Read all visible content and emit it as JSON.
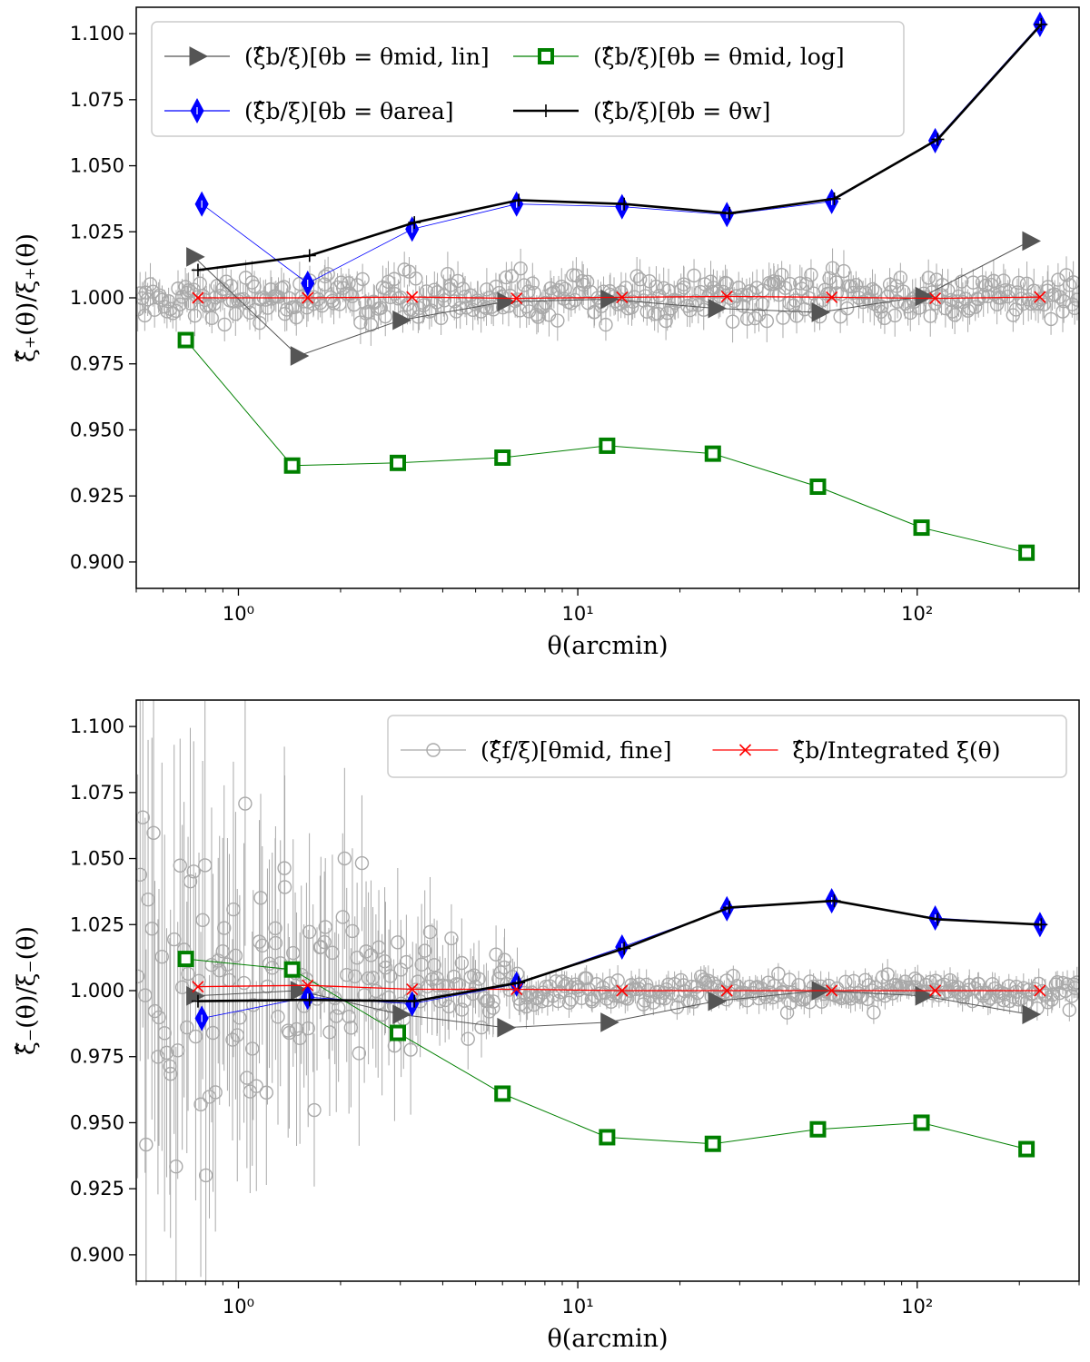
{
  "chart_data": [
    {
      "type": "line",
      "xscale": "log",
      "xlim": [
        0.5,
        300
      ],
      "ylim": [
        0.89,
        1.11
      ],
      "xlabel": "θ(arcmin)",
      "ylabel": "ξ̂₊(θ)/ξ₊(θ)",
      "yticks": [
        "0.900",
        "0.925",
        "0.950",
        "0.975",
        "1.000",
        "1.025",
        "1.050",
        "1.075",
        "1.100"
      ],
      "xticks": [
        "10⁰",
        "10¹",
        "10²"
      ],
      "legend": {
        "placement": "top",
        "entries": [
          "mid_lin",
          "log",
          "area",
          "w"
        ]
      },
      "series": [
        {
          "key": "mid_lin",
          "name": "(ξ̂b/ξ)[θb = θmid, lin]",
          "color": "#555555",
          "marker": "triangle-right",
          "x": [
            0.74,
            1.5,
            3.0,
            6.1,
            12.3,
            25.5,
            51.5,
            104,
            215
          ],
          "y": [
            1.0155,
            0.978,
            0.9915,
            0.9985,
            0.9995,
            0.996,
            0.9945,
            1.0005,
            1.0215
          ]
        },
        {
          "key": "area",
          "name": "(ξ̂b/ξ)[θb = θarea]",
          "color": "#0000ff",
          "marker": "diamond",
          "x": [
            0.78,
            1.6,
            3.25,
            6.6,
            13.5,
            27.5,
            56,
            113,
            230
          ],
          "y": [
            1.0355,
            1.0055,
            1.026,
            1.0355,
            1.0345,
            1.0315,
            1.0365,
            1.0595,
            1.1035
          ]
        },
        {
          "key": "log",
          "name": "(ξ̂b/ξ)[θb = θmid, log]",
          "color": "#008000",
          "marker": "square",
          "x": [
            0.7,
            1.44,
            2.95,
            6.0,
            12.2,
            25.0,
            51.0,
            103,
            210
          ],
          "y": [
            0.984,
            0.9365,
            0.9375,
            0.9395,
            0.944,
            0.941,
            0.9285,
            0.913,
            0.9035
          ]
        },
        {
          "key": "w",
          "name": "(ξ̂b/ξ)[θb = θw]",
          "color": "#000000",
          "marker": "plus",
          "x": [
            0.76,
            1.62,
            3.3,
            6.7,
            13.7,
            28,
            57,
            115,
            232
          ],
          "y": [
            1.0105,
            1.016,
            1.0285,
            1.037,
            1.0355,
            1.032,
            1.0375,
            1.06,
            1.1035
          ]
        },
        {
          "key": "integrated",
          "name": "ξ̂b/Integrated ξ(θ)",
          "color": "#ff0000",
          "marker": "x",
          "x": [
            0.76,
            1.6,
            3.25,
            6.6,
            13.5,
            27.5,
            56,
            113,
            230
          ],
          "y": [
            1.0,
            1.0,
            1.0003,
            0.9998,
            1.0002,
            1.0005,
            1.0002,
            0.9998,
            1.0003
          ]
        }
      ],
      "fine": {
        "key": "fine",
        "name": "(ξ̂f/ξ)[θmid, fine]",
        "color": "#a9a9a9",
        "marker": "circle",
        "xmin": 0.5,
        "xmax": 300,
        "count": 420,
        "center": 1.0,
        "scatter": 0.0042,
        "scatter_small_theta": 0.0042
      }
    },
    {
      "type": "line",
      "xscale": "log",
      "xlim": [
        0.5,
        300
      ],
      "ylim": [
        0.89,
        1.11
      ],
      "xlabel": "θ(arcmin)",
      "ylabel": "ξ̂₋(θ)/ξ₋(θ)",
      "yticks": [
        "0.900",
        "0.925",
        "0.950",
        "0.975",
        "1.000",
        "1.025",
        "1.050",
        "1.075",
        "1.100"
      ],
      "xticks": [
        "10⁰",
        "10¹",
        "10²"
      ],
      "legend": {
        "placement": "top-right",
        "entries": [
          "fine",
          "integrated"
        ]
      },
      "series": [
        {
          "key": "mid_lin",
          "name": "(ξ̂b/ξ)[θb = θmid, lin]",
          "color": "#555555",
          "marker": "triangle-right",
          "x": [
            0.74,
            1.5,
            3.0,
            6.1,
            12.3,
            25.5,
            51.5,
            104,
            215
          ],
          "y": [
            0.998,
            1.0,
            0.991,
            0.986,
            0.988,
            0.996,
            1.0,
            0.998,
            0.991
          ]
        },
        {
          "key": "area",
          "name": "(ξ̂b/ξ)[θb = θarea]",
          "color": "#0000ff",
          "marker": "diamond",
          "x": [
            0.78,
            1.6,
            3.25,
            6.6,
            13.5,
            27.5,
            56,
            113,
            230
          ],
          "y": [
            0.9895,
            0.9975,
            0.995,
            1.0025,
            1.0165,
            1.031,
            1.034,
            1.0275,
            1.025
          ]
        },
        {
          "key": "log",
          "name": "(ξ̂b/ξ)[θb = θmid, log]",
          "color": "#008000",
          "marker": "square",
          "x": [
            0.7,
            1.44,
            2.95,
            6.0,
            12.2,
            25.0,
            51.0,
            103,
            210
          ],
          "y": [
            1.012,
            1.008,
            0.984,
            0.961,
            0.9445,
            0.942,
            0.9475,
            0.95,
            0.94
          ]
        },
        {
          "key": "w",
          "name": "(ξ̂b/ξ)[θb = θw]",
          "color": "#000000",
          "marker": "plus",
          "x": [
            0.76,
            1.62,
            3.3,
            6.7,
            13.7,
            28,
            57,
            115,
            232
          ],
          "y": [
            0.996,
            0.9965,
            0.996,
            1.003,
            1.016,
            1.0315,
            1.034,
            1.027,
            1.025
          ]
        },
        {
          "key": "integrated",
          "name": "ξ̂b/Integrated ξ(θ)",
          "color": "#ff0000",
          "marker": "x",
          "x": [
            0.76,
            1.6,
            3.25,
            6.6,
            13.5,
            27.5,
            56,
            113,
            230
          ],
          "y": [
            1.0015,
            1.002,
            1.0005,
            1.0005,
            1.0,
            1.0,
            1.0,
            1.0,
            1.0
          ]
        }
      ],
      "fine": {
        "key": "fine",
        "name": "(ξ̂f/ξ)[θmid, fine]",
        "color": "#a9a9a9",
        "marker": "circle",
        "xmin": 0.5,
        "xmax": 300,
        "count": 420,
        "center": 1.0,
        "scatter": 0.003,
        "scatter_small_theta": 0.045
      }
    }
  ]
}
